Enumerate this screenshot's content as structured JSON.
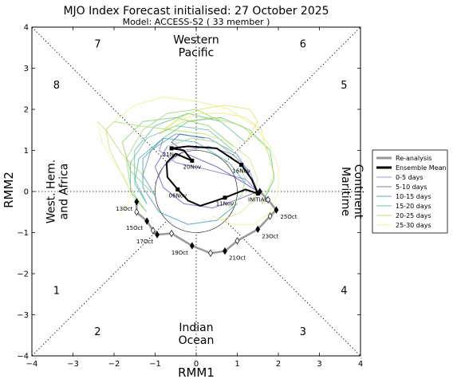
{
  "chart_data": {
    "type": "line",
    "title": "MJO Index Forecast initialised:  27  October 2025",
    "subtitle": "Model: ACCESS-S2 ( 33 member )",
    "xlabel": "RMM1",
    "ylabel": "RMM2",
    "xlim": [
      -4,
      4
    ],
    "ylim": [
      -4,
      4
    ],
    "xticks": [
      "−4",
      "−3",
      "−2",
      "−1",
      "0",
      "1",
      "2",
      "3",
      "4"
    ],
    "yticks": [
      "−4",
      "−3",
      "−2",
      "−1",
      "0",
      "1",
      "2",
      "3",
      "4"
    ],
    "phase_labels": [
      {
        "text": "1",
        "x": -3.4,
        "y": -2.4
      },
      {
        "text": "2",
        "x": -2.4,
        "y": -3.4
      },
      {
        "text": "3",
        "x": 2.6,
        "y": -3.4
      },
      {
        "text": "4",
        "x": 3.6,
        "y": -2.4
      },
      {
        "text": "5",
        "x": 3.6,
        "y": 2.6
      },
      {
        "text": "6",
        "x": 2.6,
        "y": 3.6
      },
      {
        "text": "7",
        "x": -2.4,
        "y": 3.6
      },
      {
        "text": "8",
        "x": -3.4,
        "y": 2.6
      }
    ],
    "region_labels": {
      "top": [
        "Western",
        "Pacific"
      ],
      "bottom": [
        "Indian",
        "Ocean"
      ],
      "left": [
        "West. Hem.",
        "and Africa"
      ],
      "right": [
        "Maritime",
        "Continent"
      ]
    },
    "reanalysis": {
      "name": "Re-analysis",
      "points": [
        {
          "x": -1.45,
          "y": -0.25,
          "label": "13Oct"
        },
        {
          "x": -1.45,
          "y": -0.5
        },
        {
          "x": -1.2,
          "y": -0.72,
          "label": "15Oct"
        },
        {
          "x": -1.05,
          "y": -0.95
        },
        {
          "x": -0.95,
          "y": -1.05,
          "label": "17Oct"
        },
        {
          "x": -0.6,
          "y": -1.02
        },
        {
          "x": -0.1,
          "y": -1.32,
          "label": "19Oct"
        },
        {
          "x": 0.35,
          "y": -1.5
        },
        {
          "x": 0.7,
          "y": -1.45,
          "label": "21Oct"
        },
        {
          "x": 1.0,
          "y": -1.2
        },
        {
          "x": 1.5,
          "y": -0.92,
          "label": "23Oct"
        },
        {
          "x": 1.8,
          "y": -0.6
        },
        {
          "x": 1.95,
          "y": -0.45,
          "label": "25Oct"
        },
        {
          "x": 1.75,
          "y": -0.2
        },
        {
          "x": 1.55,
          "y": 0.0
        }
      ]
    },
    "ensemble_mean": {
      "name": "Ensemble Mean",
      "points": [
        {
          "x": 1.5,
          "y": -0.05,
          "label": "INITIAL"
        },
        {
          "x": 1.2,
          "y": 0.05
        },
        {
          "x": 0.7,
          "y": -0.15,
          "label": "11Nov"
        },
        {
          "x": 0.4,
          "y": -0.25
        },
        {
          "x": 0.1,
          "y": -0.35
        },
        {
          "x": -0.2,
          "y": -0.22
        },
        {
          "x": -0.45,
          "y": 0.05,
          "label": "06Nov"
        },
        {
          "x": -0.7,
          "y": 0.35
        },
        {
          "x": -0.72,
          "y": 0.7
        },
        {
          "x": -0.5,
          "y": 0.92
        },
        {
          "x": -0.1,
          "y": 0.75,
          "label": "20Nov"
        },
        {
          "x": -0.3,
          "y": 1.0
        },
        {
          "x": -0.6,
          "y": 1.05,
          "label": "21Nov"
        },
        {
          "x": -0.2,
          "y": 1.1
        },
        {
          "x": 0.5,
          "y": 1.05
        },
        {
          "x": 1.1,
          "y": 0.65,
          "label": "16Nov"
        },
        {
          "x": 1.35,
          "y": 0.3
        },
        {
          "x": 1.5,
          "y": -0.05
        }
      ]
    },
    "members": [
      {
        "color": "#6b6bd6",
        "points": [
          [
            1.5,
            0
          ],
          [
            1.2,
            0.3
          ],
          [
            0.8,
            0.4
          ],
          [
            0.2,
            0.55
          ],
          [
            -0.5,
            0.7
          ],
          [
            -0.9,
            1.0
          ],
          [
            -0.8,
            1.3
          ]
        ]
      },
      {
        "color": "#3b3bb0",
        "points": [
          [
            1.5,
            0
          ],
          [
            1.1,
            0.25
          ],
          [
            0.5,
            0.6
          ],
          [
            -0.2,
            0.9
          ],
          [
            -0.6,
            1.2
          ],
          [
            -0.4,
            1.4
          ],
          [
            0.2,
            1.3
          ]
        ]
      },
      {
        "color": "#7a7acc",
        "points": [
          [
            1.5,
            0
          ],
          [
            1.3,
            0.5
          ],
          [
            0.9,
            0.9
          ],
          [
            0.3,
            1.1
          ],
          [
            -0.3,
            1.0
          ],
          [
            -0.8,
            0.6
          ],
          [
            -1.0,
            0.2
          ]
        ]
      },
      {
        "color": "#5050b8",
        "points": [
          [
            1.5,
            0
          ],
          [
            1.0,
            -0.2
          ],
          [
            0.4,
            -0.4
          ],
          [
            -0.3,
            -0.3
          ],
          [
            -0.8,
            0.1
          ],
          [
            -1.0,
            0.6
          ],
          [
            -0.7,
            1.1
          ]
        ]
      },
      {
        "color": "#4a90a8",
        "points": [
          [
            1.3,
            0.4
          ],
          [
            1.0,
            0.9
          ],
          [
            0.3,
            1.3
          ],
          [
            -0.5,
            1.4
          ],
          [
            -1.1,
            1.0
          ],
          [
            -1.3,
            0.4
          ],
          [
            -1.0,
            -0.1
          ]
        ]
      },
      {
        "color": "#3aa6a0",
        "points": [
          [
            1.2,
            0.2
          ],
          [
            0.8,
            0.7
          ],
          [
            0.0,
            1.2
          ],
          [
            -0.8,
            1.3
          ],
          [
            -1.4,
            0.8
          ],
          [
            -1.5,
            0.2
          ],
          [
            -1.2,
            -0.3
          ]
        ]
      },
      {
        "color": "#2f8fa8",
        "points": [
          [
            1.0,
            -0.3
          ],
          [
            0.5,
            -0.7
          ],
          [
            -0.2,
            -0.8
          ],
          [
            -0.9,
            -0.5
          ],
          [
            -1.3,
            0.1
          ],
          [
            -1.3,
            0.8
          ],
          [
            -0.8,
            1.3
          ]
        ]
      },
      {
        "color": "#55b49a",
        "points": [
          [
            0.9,
            1.0
          ],
          [
            0.3,
            1.5
          ],
          [
            -0.5,
            1.6
          ],
          [
            -1.2,
            1.3
          ],
          [
            -1.6,
            0.7
          ],
          [
            -1.6,
            0.0
          ],
          [
            -1.2,
            -0.5
          ]
        ]
      },
      {
        "color": "#66c07a",
        "points": [
          [
            -0.8,
            1.3
          ],
          [
            -0.2,
            1.7
          ],
          [
            0.6,
            1.8
          ],
          [
            1.3,
            1.5
          ],
          [
            1.8,
            1.0
          ],
          [
            1.9,
            0.3
          ],
          [
            1.6,
            -0.3
          ]
        ]
      },
      {
        "color": "#4fb890",
        "points": [
          [
            -1.2,
            -0.3
          ],
          [
            -1.5,
            0.3
          ],
          [
            -1.5,
            1.0
          ],
          [
            -1.0,
            1.6
          ],
          [
            -0.2,
            1.9
          ],
          [
            0.6,
            1.7
          ],
          [
            1.2,
            1.2
          ]
        ]
      },
      {
        "color": "#7acb6a",
        "points": [
          [
            -1.0,
            -0.1
          ],
          [
            -1.6,
            0.5
          ],
          [
            -1.8,
            1.2
          ],
          [
            -1.3,
            1.7
          ],
          [
            -0.5,
            1.8
          ],
          [
            0.3,
            1.6
          ],
          [
            0.9,
            1.1
          ]
        ]
      },
      {
        "color": "#8fd16a",
        "points": [
          [
            0.6,
            1.7
          ],
          [
            0.0,
            2.0
          ],
          [
            -0.7,
            1.9
          ],
          [
            -1.3,
            1.5
          ],
          [
            -1.7,
            0.8
          ],
          [
            -1.6,
            0.1
          ],
          [
            -1.3,
            -0.4
          ]
        ]
      },
      {
        "color": "#a6d85a",
        "points": [
          [
            -1.3,
            0.4
          ],
          [
            -1.8,
            0.9
          ],
          [
            -2.2,
            1.5
          ],
          [
            -2.0,
            1.7
          ],
          [
            -1.4,
            1.6
          ],
          [
            -0.6,
            1.5
          ],
          [
            0.2,
            1.4
          ]
        ]
      },
      {
        "color": "#b8dc5a",
        "points": [
          [
            1.6,
            -0.3
          ],
          [
            1.9,
            0.4
          ],
          [
            1.7,
            1.1
          ],
          [
            1.1,
            1.6
          ],
          [
            0.4,
            1.8
          ],
          [
            -0.3,
            1.7
          ],
          [
            -0.9,
            1.4
          ]
        ]
      },
      {
        "color": "#d4e25a",
        "points": [
          [
            1.2,
            1.2
          ],
          [
            1.5,
            1.7
          ],
          [
            1.3,
            2.0
          ],
          [
            0.7,
            2.1
          ],
          [
            0.1,
            2.0
          ],
          [
            -0.4,
            1.8
          ],
          [
            -0.8,
            1.5
          ]
        ]
      },
      {
        "color": "#c8e070",
        "points": [
          [
            -1.2,
            -0.5
          ],
          [
            -1.5,
            -0.2
          ],
          [
            -1.8,
            0.4
          ],
          [
            -2.1,
            1.0
          ],
          [
            -2.2,
            1.5
          ],
          [
            -2.3,
            1.6
          ],
          [
            -2.4,
            1.7
          ]
        ]
      },
      {
        "color": "#ecec72",
        "points": [
          [
            -2.0,
            1.7
          ],
          [
            -1.5,
            2.1
          ],
          [
            -0.8,
            2.3
          ],
          [
            0.0,
            2.2
          ],
          [
            0.8,
            2.0
          ],
          [
            1.4,
            1.6
          ],
          [
            1.8,
            1.1
          ]
        ]
      },
      {
        "color": "#f0ee8a",
        "points": [
          [
            1.8,
            1.1
          ],
          [
            2.0,
            0.6
          ],
          [
            2.0,
            0.0
          ],
          [
            1.8,
            -0.5
          ],
          [
            1.4,
            -0.8
          ],
          [
            0.9,
            -0.8
          ],
          [
            0.4,
            -0.6
          ]
        ]
      },
      {
        "color": "#f4f09c",
        "points": [
          [
            -2.4,
            1.7
          ],
          [
            -2.3,
            1.2
          ],
          [
            -2.0,
            0.7
          ],
          [
            -1.7,
            0.3
          ],
          [
            -1.6,
            -0.1
          ],
          [
            -1.7,
            -0.4
          ],
          [
            -1.9,
            -0.6
          ]
        ]
      },
      {
        "color": "#e8e470",
        "points": [
          [
            -0.9,
            1.4
          ],
          [
            -0.5,
            1.7
          ],
          [
            0.1,
            1.9
          ],
          [
            0.7,
            1.9
          ],
          [
            1.2,
            1.8
          ],
          [
            1.6,
            1.5
          ],
          [
            1.7,
            1.0
          ]
        ]
      },
      {
        "color": "#cfe37a",
        "points": [
          [
            0.2,
            1.4
          ],
          [
            0.8,
            1.2
          ],
          [
            1.3,
            0.8
          ],
          [
            1.5,
            0.3
          ],
          [
            1.4,
            -0.2
          ],
          [
            1.1,
            -0.5
          ],
          [
            0.6,
            -0.7
          ]
        ]
      },
      {
        "color": "#95d07a",
        "points": [
          [
            -0.7,
            1.1
          ],
          [
            -0.1,
            1.3
          ],
          [
            0.5,
            1.2
          ],
          [
            1.0,
            0.8
          ],
          [
            1.2,
            0.3
          ],
          [
            1.1,
            -0.1
          ],
          [
            0.8,
            -0.4
          ]
        ]
      }
    ],
    "legend": {
      "placement": "right",
      "entries": [
        {
          "label": "Re-analysis",
          "color": "#999999",
          "width": 3
        },
        {
          "label": "Ensemble Mean",
          "color": "#000000",
          "width": 3
        },
        {
          "label": "0-5 days",
          "color": "#9a9ad8",
          "width": 1
        },
        {
          "label": "5-10 days",
          "color": "#7d7dc4",
          "width": 1
        },
        {
          "label": "10-15 days",
          "color": "#6aa6b0",
          "width": 1
        },
        {
          "label": "15-20 days",
          "color": "#74c7a4",
          "width": 1
        },
        {
          "label": "20-25 days",
          "color": "#b4dc7a",
          "width": 1
        },
        {
          "label": "25-30 days",
          "color": "#f3f0a0",
          "width": 1
        }
      ]
    }
  }
}
